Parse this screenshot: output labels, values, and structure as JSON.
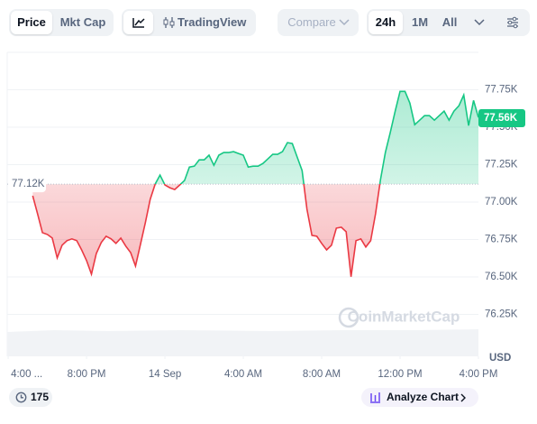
{
  "toolbar": {
    "tabs": [
      "Price",
      "Mkt Cap"
    ],
    "tradingview": "TradingView",
    "compare": "Compare",
    "ranges": [
      "24h",
      "1M",
      "All"
    ]
  },
  "chart_data": {
    "type": "line",
    "x": [
      -2.75,
      -2.5,
      -2.25,
      -2.0,
      -1.75,
      -1.5,
      -1.25,
      -1.0,
      -0.75,
      -0.5,
      -0.25,
      0,
      0.25,
      0.5,
      0.75,
      1.0,
      1.25,
      1.5,
      1.75,
      2.0,
      2.25,
      2.5,
      2.75,
      3.0,
      3.25,
      3.5,
      3.75,
      4.0,
      4.25,
      4.5,
      4.75,
      5.0,
      5.25,
      5.5,
      5.75,
      6.0,
      6.25,
      6.5,
      6.75,
      7.0,
      7.25,
      7.5,
      7.75,
      8.0,
      8.25,
      8.5,
      8.75,
      9.0,
      9.25,
      9.5,
      9.75,
      10.0,
      10.25,
      10.5,
      10.75,
      11.0,
      11.25,
      11.5,
      11.75,
      12.0,
      12.25,
      12.5,
      12.75,
      13.0,
      13.25,
      13.5,
      13.75,
      14.0,
      14.25,
      14.5,
      14.75,
      15.0,
      15.25,
      15.5,
      15.75,
      16.0,
      16.25,
      16.5,
      16.75,
      17.0,
      17.25,
      17.5,
      17.75,
      18.0,
      18.25,
      18.5,
      18.75,
      19.0,
      19.25,
      19.5,
      19.75,
      20.0
    ],
    "values": [
      77042,
      76922,
      76796,
      76784,
      76760,
      76627,
      76712,
      76742,
      76754,
      76742,
      76681,
      76609,
      76519,
      76657,
      76730,
      76772,
      76754,
      76724,
      76760,
      76706,
      76663,
      76573,
      76718,
      76862,
      77018,
      77120,
      77180,
      77114,
      77096,
      77084,
      77114,
      77144,
      77234,
      77240,
      77282,
      77282,
      77313,
      77246,
      77313,
      77331,
      77331,
      77337,
      77325,
      77313,
      77234,
      77240,
      77240,
      77258,
      77288,
      77319,
      77319,
      77337,
      77397,
      77391,
      77301,
      77210,
      76952,
      76778,
      76772,
      76724,
      76681,
      76712,
      76826,
      76832,
      76802,
      76501,
      76742,
      76754,
      76700,
      76742,
      76922,
      77150,
      77331,
      77463,
      77607,
      77739,
      77739,
      77661,
      77517,
      77547,
      77577,
      77577,
      77547,
      77577,
      77607,
      77547,
      77607,
      77643,
      77715,
      77511,
      77679,
      77565
    ],
    "color_up": "#16c784",
    "color_down": "#ea3943",
    "baseline": {
      "value": 77120,
      "label": "77.12K"
    },
    "last_price": {
      "value": 77560,
      "label": "77.56K"
    },
    "xlim": [
      -4.05,
      20.0
    ],
    "xticks": [
      {
        "value": -4,
        "label": "4:00 ..."
      },
      {
        "value": 0,
        "label": "8:00 PM"
      },
      {
        "value": 4,
        "label": "14 Sep"
      },
      {
        "value": 8,
        "label": "4:00 AM"
      },
      {
        "value": 12,
        "label": "8:00 AM"
      },
      {
        "value": 16,
        "label": "12:00 PM"
      },
      {
        "value": 20,
        "label": "4:00 PM"
      }
    ],
    "ylim": [
      75970,
      78000
    ],
    "yticks": [
      {
        "value": 76250,
        "label": "76.25K"
      },
      {
        "value": 76500,
        "label": "76.50K"
      },
      {
        "value": 76750,
        "label": "76.75K"
      },
      {
        "value": 77000,
        "label": "77.00K"
      },
      {
        "value": 77250,
        "label": "77.25K"
      },
      {
        "value": 77500,
        "label": "77.50K"
      },
      {
        "value": 77750,
        "label": "77.75K"
      }
    ],
    "grid": true,
    "y_unit": "USD",
    "watermark": "CoinMarketCap"
  },
  "footer": {
    "count": 175,
    "analyze": "Analyze Chart"
  }
}
